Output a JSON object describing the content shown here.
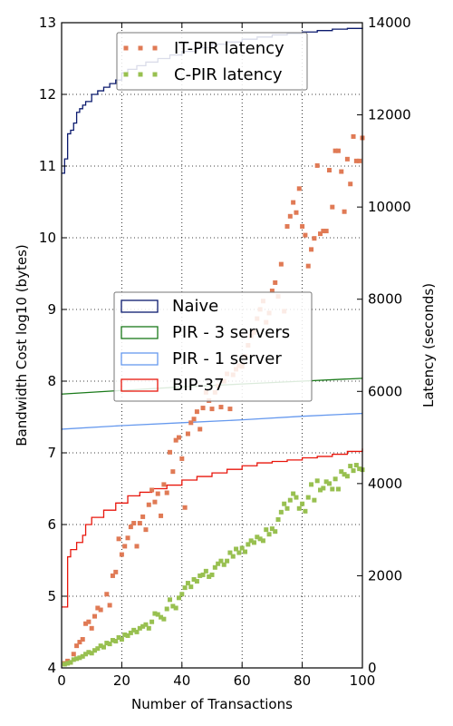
{
  "chart_data": {
    "type": "line+scatter",
    "xlabel": "Number of Transactions",
    "ylabel_left": "Bandwidth Cost log10 (bytes)",
    "ylabel_right": "Latency (seconds)",
    "xlim": [
      0,
      100
    ],
    "ylim_left": [
      4,
      13
    ],
    "ylim_right": [
      0,
      14000
    ],
    "x_ticks": [
      "0",
      "20",
      "40",
      "60",
      "80",
      "100"
    ],
    "y_left_ticks": [
      "4",
      "5",
      "6",
      "7",
      "8",
      "9",
      "10",
      "11",
      "12",
      "13"
    ],
    "y_right_ticks": [
      "0",
      "2000",
      "4000",
      "6000",
      "8000",
      "10000",
      "12000",
      "14000"
    ],
    "grid": true,
    "line_legend_position": "center-left",
    "scatter_legend_position": "top-center",
    "line_series": [
      {
        "name": "Naive",
        "color": "#0b1a6e",
        "style": "step",
        "points": [
          [
            0,
            10.9
          ],
          [
            1,
            11.1
          ],
          [
            2,
            11.45
          ],
          [
            3,
            11.5
          ],
          [
            4,
            11.6
          ],
          [
            5,
            11.75
          ],
          [
            6,
            11.8
          ],
          [
            7,
            11.85
          ],
          [
            8,
            11.9
          ],
          [
            10,
            12.0
          ],
          [
            12,
            12.05
          ],
          [
            14,
            12.1
          ],
          [
            16,
            12.15
          ],
          [
            18,
            12.2
          ],
          [
            20,
            12.3
          ],
          [
            22,
            12.35
          ],
          [
            25,
            12.4
          ],
          [
            28,
            12.45
          ],
          [
            32,
            12.5
          ],
          [
            36,
            12.55
          ],
          [
            40,
            12.6
          ],
          [
            45,
            12.65
          ],
          [
            50,
            12.7
          ],
          [
            55,
            12.73
          ],
          [
            60,
            12.77
          ],
          [
            65,
            12.8
          ],
          [
            70,
            12.83
          ],
          [
            75,
            12.85
          ],
          [
            80,
            12.87
          ],
          [
            85,
            12.89
          ],
          [
            90,
            12.91
          ],
          [
            95,
            12.92
          ],
          [
            100,
            12.93
          ]
        ]
      },
      {
        "name": "PIR - 3 servers",
        "color": "#1a7a1a",
        "style": "line",
        "points": [
          [
            0,
            7.82
          ],
          [
            20,
            7.87
          ],
          [
            40,
            7.92
          ],
          [
            60,
            7.96
          ],
          [
            80,
            8.0
          ],
          [
            100,
            8.04
          ]
        ]
      },
      {
        "name": "PIR - 1 server",
        "color": "#6699ee",
        "style": "line",
        "points": [
          [
            0,
            7.33
          ],
          [
            20,
            7.38
          ],
          [
            40,
            7.42
          ],
          [
            60,
            7.46
          ],
          [
            80,
            7.51
          ],
          [
            100,
            7.55
          ]
        ]
      },
      {
        "name": "BIP-37",
        "color": "#e8160c",
        "style": "step",
        "points": [
          [
            0,
            4.85
          ],
          [
            2,
            5.55
          ],
          [
            3,
            5.65
          ],
          [
            5,
            5.75
          ],
          [
            7,
            5.85
          ],
          [
            8,
            6.0
          ],
          [
            10,
            6.1
          ],
          [
            14,
            6.2
          ],
          [
            18,
            6.3
          ],
          [
            22,
            6.4
          ],
          [
            26,
            6.45
          ],
          [
            30,
            6.5
          ],
          [
            35,
            6.55
          ],
          [
            40,
            6.62
          ],
          [
            45,
            6.67
          ],
          [
            50,
            6.72
          ],
          [
            55,
            6.77
          ],
          [
            60,
            6.82
          ],
          [
            65,
            6.86
          ],
          [
            70,
            6.88
          ],
          [
            75,
            6.9
          ],
          [
            80,
            6.93
          ],
          [
            85,
            6.95
          ],
          [
            90,
            6.98
          ],
          [
            95,
            7.02
          ],
          [
            100,
            7.06
          ]
        ]
      }
    ],
    "scatter_series": [
      {
        "name": "IT-PIR latency",
        "color": "#e07a55",
        "points": [
          [
            1,
            100
          ],
          [
            2,
            150
          ],
          [
            3,
            120
          ],
          [
            4,
            300
          ],
          [
            5,
            480
          ],
          [
            6,
            560
          ],
          [
            7,
            620
          ],
          [
            8,
            960
          ],
          [
            9,
            1000
          ],
          [
            10,
            860
          ],
          [
            11,
            1120
          ],
          [
            12,
            1300
          ],
          [
            13,
            1260
          ],
          [
            15,
            1600
          ],
          [
            16,
            1360
          ],
          [
            17,
            2000
          ],
          [
            18,
            2080
          ],
          [
            19,
            2800
          ],
          [
            20,
            2460
          ],
          [
            21,
            2640
          ],
          [
            22,
            2820
          ],
          [
            23,
            3060
          ],
          [
            24,
            3140
          ],
          [
            25,
            2640
          ],
          [
            26,
            3140
          ],
          [
            27,
            3280
          ],
          [
            28,
            3000
          ],
          [
            29,
            3540
          ],
          [
            30,
            3860
          ],
          [
            31,
            3600
          ],
          [
            32,
            3780
          ],
          [
            33,
            3300
          ],
          [
            34,
            3980
          ],
          [
            35,
            3800
          ],
          [
            36,
            4680
          ],
          [
            37,
            4260
          ],
          [
            38,
            4940
          ],
          [
            39,
            5000
          ],
          [
            40,
            4540
          ],
          [
            41,
            3480
          ],
          [
            42,
            5080
          ],
          [
            43,
            5320
          ],
          [
            44,
            5400
          ],
          [
            45,
            5560
          ],
          [
            46,
            5180
          ],
          [
            47,
            5640
          ],
          [
            48,
            5980
          ],
          [
            49,
            5800
          ],
          [
            50,
            5620
          ],
          [
            51,
            5980
          ],
          [
            52,
            6120
          ],
          [
            53,
            5660
          ],
          [
            54,
            6220
          ],
          [
            55,
            6380
          ],
          [
            56,
            5620
          ],
          [
            57,
            6360
          ],
          [
            58,
            6480
          ],
          [
            59,
            6560
          ],
          [
            60,
            6540
          ],
          [
            61,
            6760
          ],
          [
            62,
            7000
          ],
          [
            63,
            7200
          ],
          [
            64,
            7280
          ],
          [
            65,
            7580
          ],
          [
            66,
            7780
          ],
          [
            67,
            7960
          ],
          [
            68,
            7500
          ],
          [
            69,
            7700
          ],
          [
            70,
            8180
          ],
          [
            71,
            8360
          ],
          [
            72,
            8060
          ],
          [
            73,
            8760
          ],
          [
            74,
            7740
          ],
          [
            75,
            9580
          ],
          [
            76,
            9800
          ],
          [
            77,
            10100
          ],
          [
            78,
            9880
          ],
          [
            79,
            10400
          ],
          [
            80,
            9580
          ],
          [
            81,
            9390
          ],
          [
            82,
            8720
          ],
          [
            83,
            9080
          ],
          [
            84,
            9320
          ],
          [
            85,
            10900
          ],
          [
            86,
            9420
          ],
          [
            87,
            9480
          ],
          [
            88,
            9480
          ],
          [
            89,
            10800
          ],
          [
            90,
            10000
          ],
          [
            91,
            11220
          ],
          [
            92,
            11220
          ],
          [
            93,
            10770
          ],
          [
            94,
            9900
          ],
          [
            95,
            11040
          ],
          [
            96,
            10500
          ],
          [
            97,
            11530
          ],
          [
            98,
            11000
          ],
          [
            99,
            11000
          ],
          [
            100,
            11500
          ]
        ]
      },
      {
        "name": "C-PIR latency",
        "color": "#98c050",
        "points": [
          [
            1,
            80
          ],
          [
            2,
            100
          ],
          [
            3,
            120
          ],
          [
            4,
            180
          ],
          [
            5,
            200
          ],
          [
            6,
            220
          ],
          [
            7,
            250
          ],
          [
            8,
            300
          ],
          [
            9,
            340
          ],
          [
            10,
            320
          ],
          [
            11,
            380
          ],
          [
            12,
            420
          ],
          [
            13,
            480
          ],
          [
            14,
            450
          ],
          [
            15,
            540
          ],
          [
            16,
            520
          ],
          [
            17,
            600
          ],
          [
            18,
            580
          ],
          [
            19,
            660
          ],
          [
            20,
            620
          ],
          [
            21,
            720
          ],
          [
            22,
            700
          ],
          [
            23,
            760
          ],
          [
            24,
            820
          ],
          [
            25,
            780
          ],
          [
            26,
            860
          ],
          [
            27,
            900
          ],
          [
            28,
            940
          ],
          [
            29,
            860
          ],
          [
            30,
            1000
          ],
          [
            31,
            1180
          ],
          [
            32,
            1160
          ],
          [
            33,
            1100
          ],
          [
            34,
            1060
          ],
          [
            35,
            1280
          ],
          [
            36,
            1480
          ],
          [
            37,
            1340
          ],
          [
            38,
            1300
          ],
          [
            39,
            1520
          ],
          [
            40,
            1600
          ],
          [
            41,
            1740
          ],
          [
            42,
            1840
          ],
          [
            43,
            1760
          ],
          [
            44,
            1920
          ],
          [
            45,
            1880
          ],
          [
            46,
            2000
          ],
          [
            47,
            2020
          ],
          [
            48,
            2100
          ],
          [
            49,
            1980
          ],
          [
            50,
            2020
          ],
          [
            51,
            2180
          ],
          [
            52,
            2260
          ],
          [
            53,
            2320
          ],
          [
            54,
            2240
          ],
          [
            55,
            2320
          ],
          [
            56,
            2500
          ],
          [
            57,
            2420
          ],
          [
            58,
            2580
          ],
          [
            59,
            2500
          ],
          [
            60,
            2600
          ],
          [
            61,
            2520
          ],
          [
            62,
            2680
          ],
          [
            63,
            2760
          ],
          [
            64,
            2720
          ],
          [
            65,
            2840
          ],
          [
            66,
            2800
          ],
          [
            67,
            2760
          ],
          [
            68,
            3000
          ],
          [
            69,
            2900
          ],
          [
            70,
            3020
          ],
          [
            71,
            2960
          ],
          [
            72,
            3220
          ],
          [
            73,
            3380
          ],
          [
            74,
            3560
          ],
          [
            75,
            3460
          ],
          [
            76,
            3640
          ],
          [
            77,
            3780
          ],
          [
            78,
            3700
          ],
          [
            79,
            3460
          ],
          [
            80,
            3560
          ],
          [
            81,
            3400
          ],
          [
            82,
            3700
          ],
          [
            83,
            3980
          ],
          [
            84,
            3640
          ],
          [
            85,
            4060
          ],
          [
            86,
            3860
          ],
          [
            87,
            3900
          ],
          [
            88,
            4040
          ],
          [
            89,
            4000
          ],
          [
            90,
            3880
          ],
          [
            91,
            4100
          ],
          [
            92,
            3880
          ],
          [
            93,
            4260
          ],
          [
            94,
            4200
          ],
          [
            95,
            4160
          ],
          [
            96,
            4380
          ],
          [
            97,
            4280
          ],
          [
            98,
            4400
          ],
          [
            99,
            4320
          ],
          [
            100,
            4300
          ]
        ]
      }
    ]
  }
}
